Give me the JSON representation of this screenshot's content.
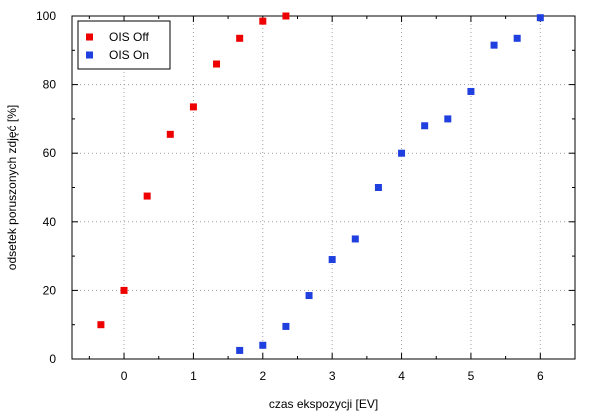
{
  "chart_data": {
    "type": "scatter",
    "title": "",
    "xlabel": "czas ekspozycji [EV]",
    "ylabel": "odsetek poruszonych zdjęć [%]",
    "xlim": [
      -0.75,
      6.5
    ],
    "ylim": [
      0,
      100
    ],
    "xticks": [
      0,
      1,
      2,
      3,
      4,
      5,
      6
    ],
    "yticks": [
      0,
      20,
      40,
      60,
      80,
      100
    ],
    "grid": true,
    "legend_position": "top-left",
    "series": [
      {
        "name": "OIS Off",
        "color": "#ee0000",
        "marker": "square",
        "x": [
          -0.3333,
          0,
          0.3333,
          0.6667,
          1,
          1.3333,
          1.6667,
          2,
          2.3333
        ],
        "y": [
          10,
          20,
          47.5,
          65.5,
          73.5,
          86,
          93.5,
          98.5,
          100
        ]
      },
      {
        "name": "OIS On",
        "color": "#1f3fdf",
        "marker": "square",
        "x": [
          1.6667,
          2,
          2.3333,
          2.6667,
          3,
          3.3333,
          3.6667,
          4,
          4.3333,
          4.6667,
          5,
          5.3333,
          5.6667,
          6
        ],
        "y": [
          2.5,
          4,
          9.5,
          18.5,
          29,
          35,
          50,
          60,
          68,
          70,
          78,
          91.5,
          93.5,
          99.5
        ]
      }
    ]
  }
}
